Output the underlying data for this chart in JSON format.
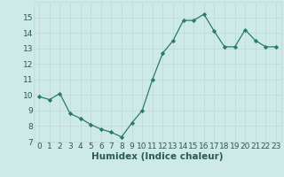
{
  "x": [
    0,
    1,
    2,
    3,
    4,
    5,
    6,
    7,
    8,
    9,
    10,
    11,
    12,
    13,
    14,
    15,
    16,
    17,
    18,
    19,
    20,
    21,
    22,
    23
  ],
  "y": [
    9.9,
    9.7,
    10.1,
    8.8,
    8.5,
    8.1,
    7.8,
    7.6,
    7.3,
    8.2,
    9.0,
    11.0,
    12.7,
    13.5,
    14.8,
    14.8,
    15.2,
    14.1,
    13.1,
    13.1,
    14.2,
    13.5,
    13.1,
    13.1
  ],
  "line_color": "#2a7a6a",
  "marker": "D",
  "marker_size": 2.2,
  "bg_color": "#ceeae7",
  "grid_color": "#c0d8d5",
  "xlabel": "Humidex (Indice chaleur)",
  "ylim": [
    7,
    16
  ],
  "xlim": [
    -0.5,
    23.5
  ],
  "yticks": [
    7,
    8,
    9,
    10,
    11,
    12,
    13,
    14,
    15
  ],
  "xticks": [
    0,
    1,
    2,
    3,
    4,
    5,
    6,
    7,
    8,
    9,
    10,
    11,
    12,
    13,
    14,
    15,
    16,
    17,
    18,
    19,
    20,
    21,
    22,
    23
  ],
  "tick_fontsize": 6.5,
  "xlabel_fontsize": 7.5,
  "tick_color": "#2a5a50",
  "xlabel_color": "#2a5a50"
}
